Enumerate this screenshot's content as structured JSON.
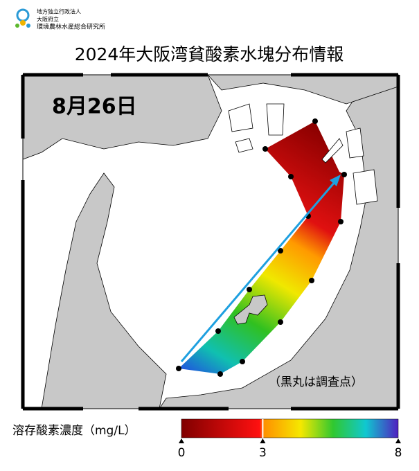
{
  "header": {
    "org": [
      "地方独立行政法人",
      "大阪府立",
      "環境農林水産総合研究所"
    ]
  },
  "title": "2024年大阪湾貧酸素水塊分布情報",
  "map": {
    "date": "8月26日",
    "note": "（黒丸は調査点）"
  },
  "colorbar": {
    "label": "溶存酸素濃度（mg/L）",
    "range": [
      0,
      8
    ],
    "ticks": [
      0,
      3,
      8
    ]
  }
}
